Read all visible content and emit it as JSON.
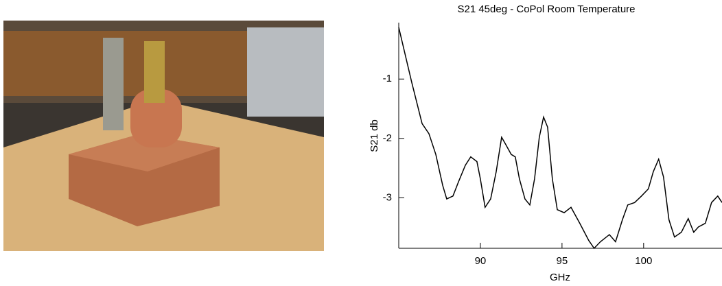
{
  "chart_data": {
    "type": "line",
    "title": "S21 45deg - CoPol Room Temperature",
    "x_label": "GHz",
    "y_label": "S21 db",
    "xlim": [
      85,
      104.8
    ],
    "xticks": [
      90,
      95,
      100
    ],
    "ylim": [
      -3.85,
      -0.05
    ],
    "yticks": [
      -1,
      -2,
      -3
    ],
    "series": [
      {
        "color": "#000000",
        "x": [
          85,
          85.8,
          86.43,
          86.85,
          87.27,
          87.69,
          87.94,
          88.32,
          88.66,
          89.08,
          89.41,
          89.79,
          90,
          90.29,
          90.63,
          90.97,
          91.3,
          91.55,
          91.89,
          92.14,
          92.39,
          92.73,
          93.03,
          93.32,
          93.61,
          93.87,
          94.12,
          94.41,
          94.71,
          95.13,
          95.55,
          96.09,
          96.64,
          96.97,
          97.35,
          97.9,
          98.28,
          98.7,
          99.03,
          99.45,
          99.87,
          100.29,
          100.59,
          100.92,
          101.22,
          101.55,
          101.89,
          102.31,
          102.73,
          103.07,
          103.36,
          103.78,
          104.16,
          104.54,
          104.8
        ],
        "values": [
          -0.13,
          -1.06,
          -1.75,
          -1.92,
          -2.27,
          -2.79,
          -3.02,
          -2.97,
          -2.73,
          -2.45,
          -2.31,
          -2.39,
          -2.68,
          -3.16,
          -3.02,
          -2.56,
          -1.98,
          -2.1,
          -2.27,
          -2.31,
          -2.68,
          -3.02,
          -3.12,
          -2.68,
          -1.98,
          -1.64,
          -1.81,
          -2.68,
          -3.2,
          -3.25,
          -3.16,
          -3.43,
          -3.72,
          -3.85,
          -3.74,
          -3.62,
          -3.74,
          -3.37,
          -3.12,
          -3.08,
          -2.97,
          -2.85,
          -2.56,
          -2.35,
          -2.65,
          -3.37,
          -3.66,
          -3.58,
          -3.35,
          -3.58,
          -3.49,
          -3.43,
          -3.08,
          -2.97,
          -3.08
        ]
      }
    ]
  }
}
